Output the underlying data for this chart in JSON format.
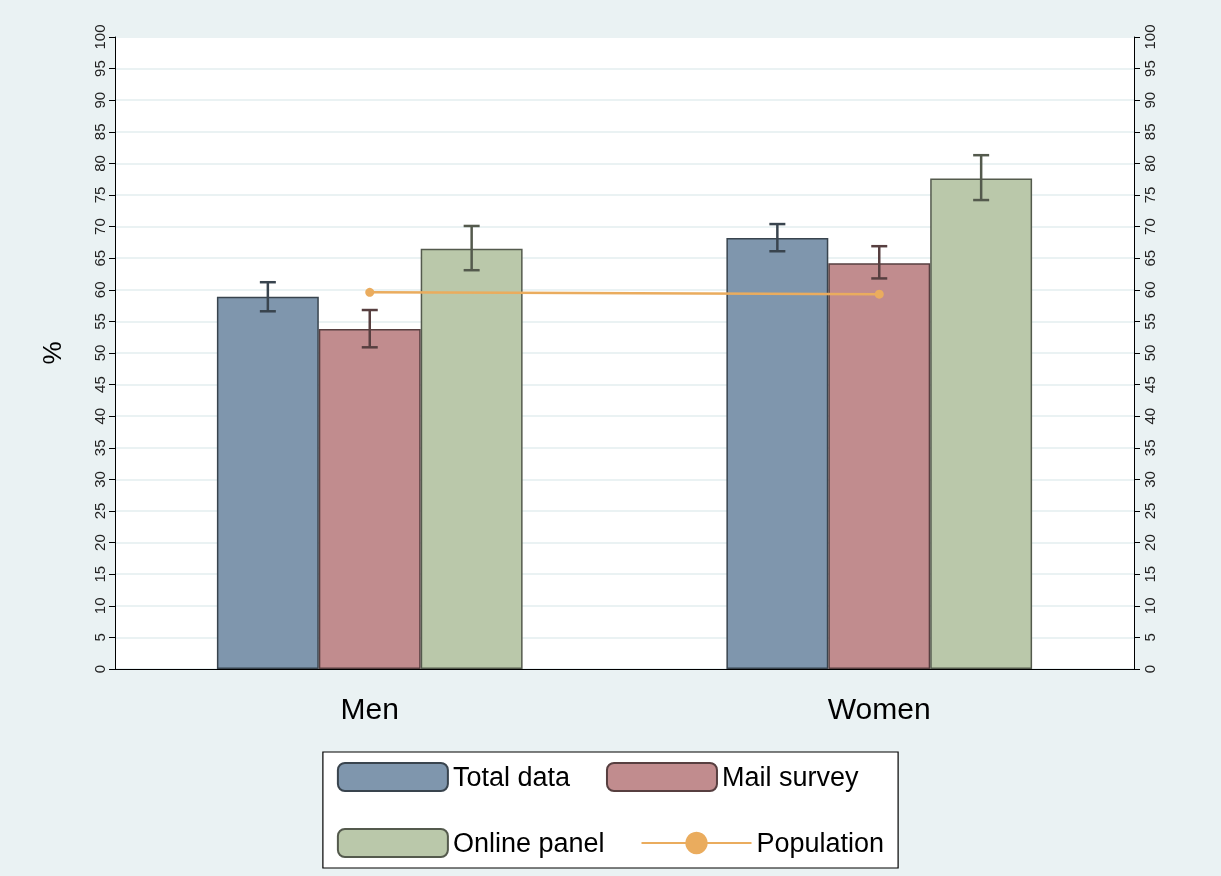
{
  "chart_data": {
    "type": "bar",
    "ylabel": "%",
    "categories": [
      "Men",
      "Women"
    ],
    "series": [
      {
        "name": "Total data",
        "color": "#7f96ad",
        "values": [
          58.9,
          68.2
        ],
        "errors": [
          [
            56.6,
            61.2
          ],
          [
            66.1,
            70.4
          ]
        ]
      },
      {
        "name": "Mail survey",
        "color": "#c18c8e",
        "values": [
          53.8,
          64.2
        ],
        "errors": [
          [
            50.9,
            56.8
          ],
          [
            61.8,
            66.9
          ]
        ]
      },
      {
        "name": "Online panel",
        "color": "#bac8aa",
        "values": [
          66.5,
          77.6
        ],
        "errors": [
          [
            63.1,
            70.1
          ],
          [
            74.2,
            81.3
          ]
        ]
      },
      {
        "name": "Population",
        "type": "line",
        "color": "#eaac5e",
        "marker": "circle",
        "values": [
          59.6,
          59.3
        ]
      }
    ],
    "ylim": [
      0,
      100
    ],
    "yticks": [
      0,
      5,
      10,
      15,
      20,
      25,
      30,
      35,
      40,
      45,
      50,
      55,
      60,
      65,
      70,
      75,
      80,
      85,
      90,
      95,
      100
    ],
    "y2lim": [
      0,
      100
    ],
    "y2ticks": [
      0,
      5,
      10,
      15,
      20,
      25,
      30,
      35,
      40,
      45,
      50,
      55,
      60,
      65,
      70,
      75,
      80,
      85,
      90,
      95,
      100
    ],
    "grid": "y",
    "legend": "bottom"
  }
}
